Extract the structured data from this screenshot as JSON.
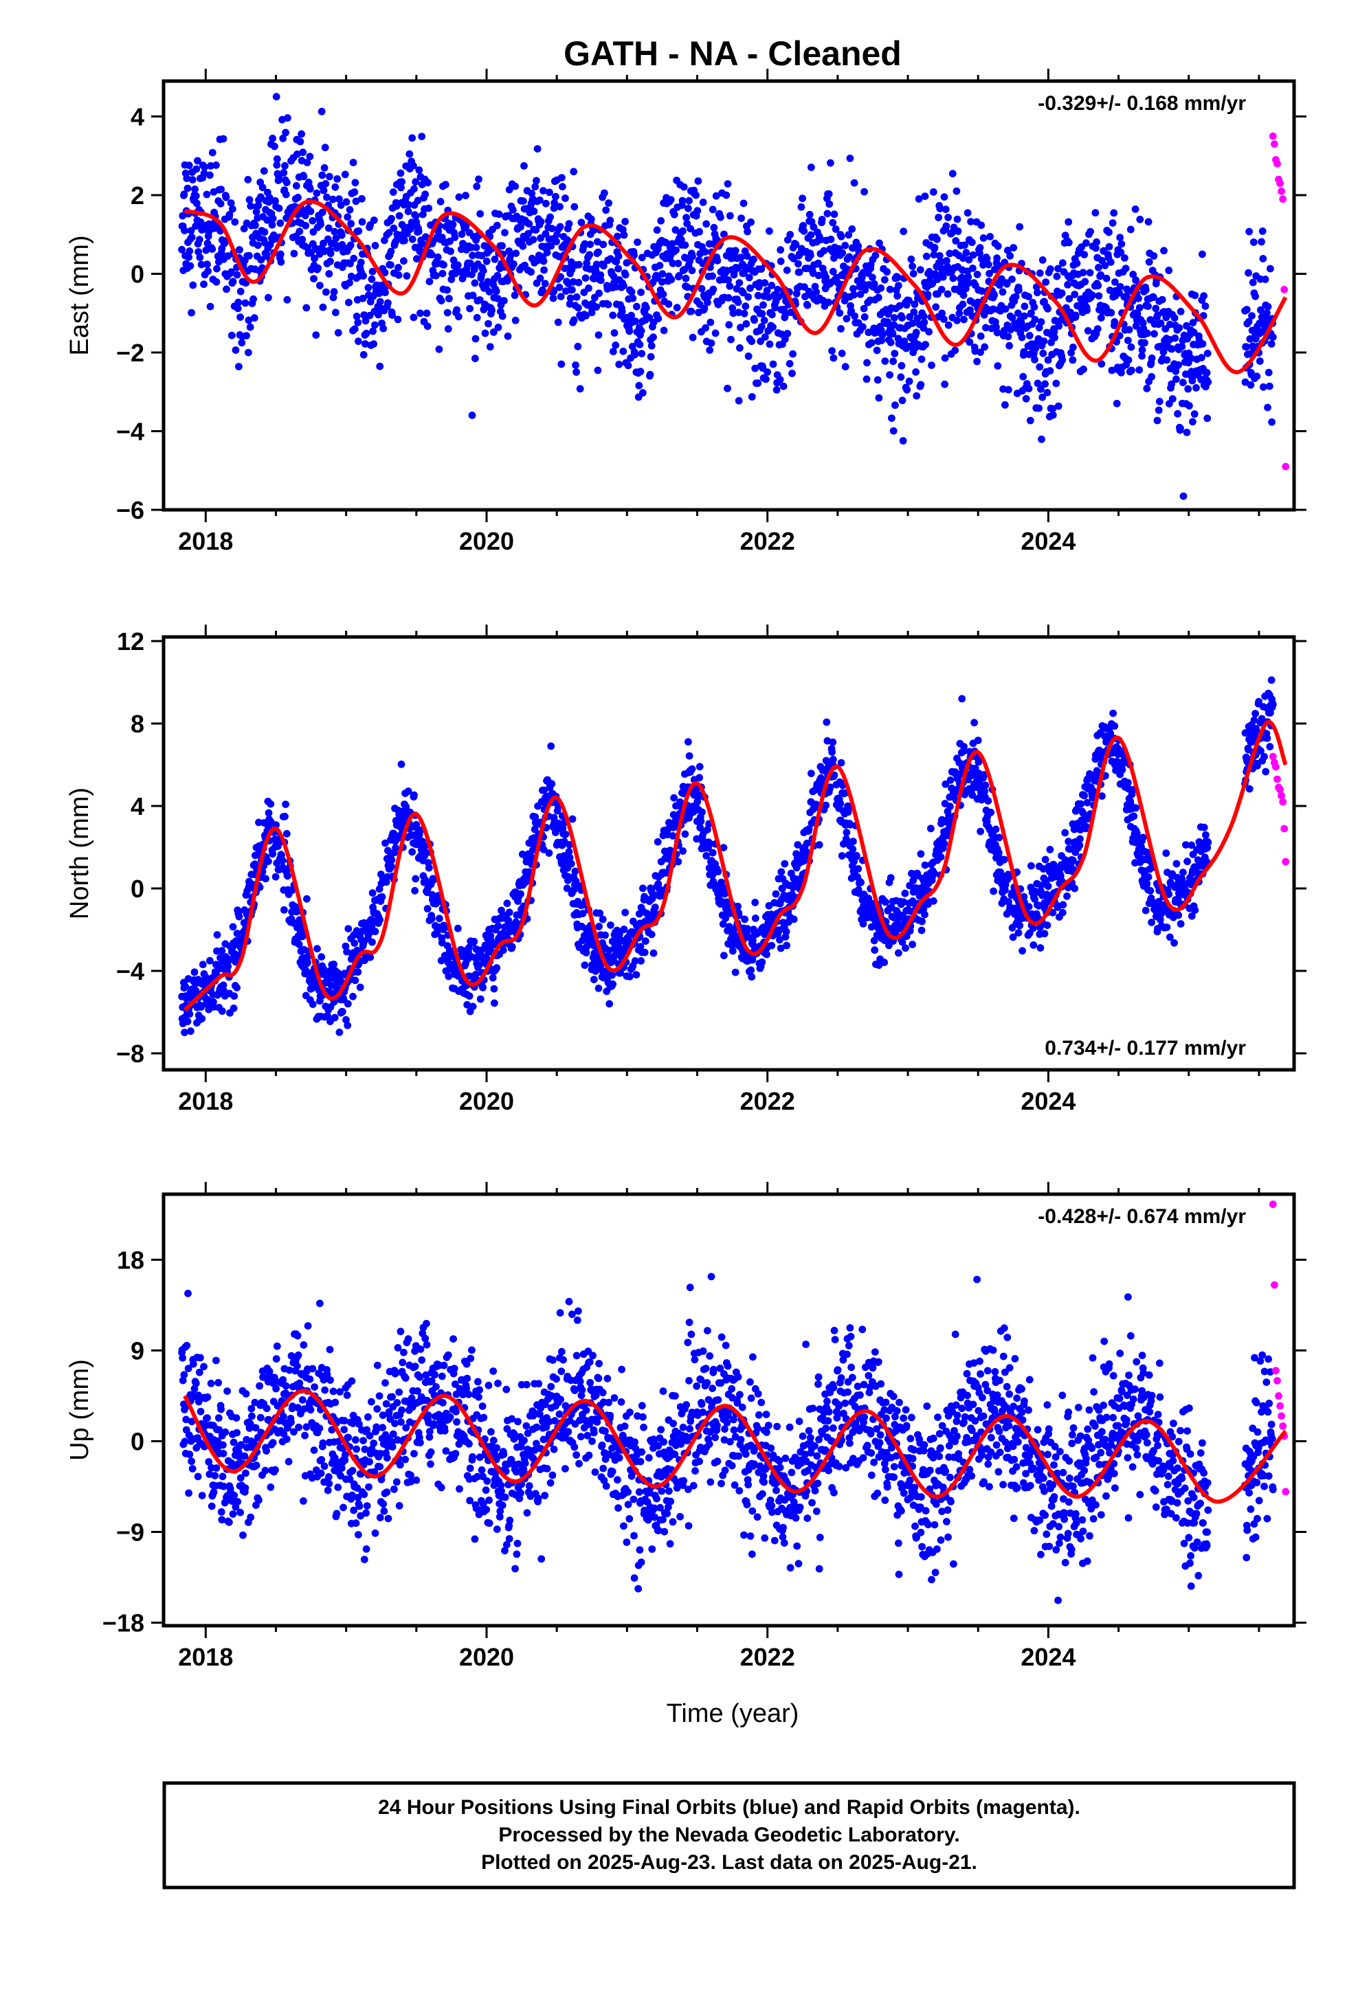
{
  "title": "GATH  - NA - Cleaned",
  "colors": {
    "final": "#0000ff",
    "rapid": "#ff00ff",
    "fit": "#ff0000",
    "axis": "#000000"
  },
  "xlabel": "Time (year)",
  "footer": {
    "line1": "24 Hour Positions Using Final Orbits (blue) and Rapid Orbits (magenta).",
    "line2": "Processed by the Nevada Geodetic Laboratory.",
    "line3": "Plotted on 2025-Aug-23. Last data on 2025-Aug-21."
  },
  "chart_data": [
    {
      "type": "scatter",
      "component": "east",
      "ylabel": "East (mm)",
      "rate_label": "-0.329+/- 0.168 mm/yr",
      "rate_position": "top-right",
      "xlim": [
        2017.7,
        2025.75
      ],
      "ylim": [
        -6.0,
        4.9
      ],
      "xticks": [
        2018,
        2020,
        2022,
        2024
      ],
      "yticks": [
        -6,
        -4,
        -2,
        0,
        2,
        4
      ],
      "series": [
        {
          "kind": "daily_final_positions",
          "sampled_x": [
            2017.85,
            2017.95,
            2018.05,
            2018.15,
            2018.25,
            2018.35,
            2018.45,
            2018.55,
            2018.65,
            2018.75,
            2018.85,
            2018.95,
            2019.05,
            2019.15,
            2019.25,
            2019.35,
            2019.45,
            2019.55,
            2019.65,
            2019.75,
            2019.85,
            2019.95,
            2020.05,
            2020.15,
            2020.25,
            2020.35,
            2020.45,
            2020.55,
            2020.65,
            2020.75,
            2020.85,
            2020.95,
            2021.05,
            2021.15,
            2021.25,
            2021.35,
            2021.45,
            2021.55,
            2021.65,
            2021.75,
            2021.85,
            2021.95,
            2022.05,
            2022.15,
            2022.25,
            2022.35,
            2022.45,
            2022.55,
            2022.65,
            2022.75,
            2022.85,
            2022.95,
            2023.05,
            2023.15,
            2023.25,
            2023.35,
            2023.45,
            2023.55,
            2023.65,
            2023.75,
            2023.85,
            2023.95,
            2024.05,
            2024.15,
            2024.25,
            2024.35,
            2024.45,
            2024.55,
            2024.65,
            2024.75,
            2024.85,
            2024.95,
            2025.05,
            2025.45,
            2025.55
          ],
          "sampled_y": [
            1.6,
            1.4,
            1.3,
            0.8,
            -0.2,
            0.5,
            1.5,
            1.8,
            1.7,
            1.3,
            1.0,
            1.0,
            0.3,
            -0.5,
            -0.4,
            0.8,
            1.5,
            1.2,
            0.8,
            0.7,
            0.6,
            -0.2,
            -0.8,
            0.2,
            1.1,
            1.2,
            0.8,
            0.4,
            0.3,
            0.2,
            0.1,
            -0.6,
            -1.1,
            -0.8,
            0.2,
            0.8,
            0.6,
            0.1,
            0.0,
            -0.1,
            -0.4,
            -1.0,
            -1.4,
            -0.7,
            0.3,
            0.5,
            0.2,
            -0.2,
            -0.3,
            -0.5,
            -1.2,
            -1.8,
            -1.2,
            -0.2,
            0.2,
            0.0,
            -0.4,
            -0.6,
            -0.7,
            -1.2,
            -1.9,
            -2.2,
            -1.6,
            -0.5,
            -0.1,
            -0.3,
            -0.7,
            -0.9,
            -1.0,
            -1.1,
            -1.9,
            -2.5,
            -2.0,
            -1.5,
            -1.2
          ],
          "scatter_sd": 0.95
        },
        {
          "kind": "rapid_positions",
          "x": [
            2025.6,
            2025.61,
            2025.62,
            2025.63,
            2025.64,
            2025.65,
            2025.66,
            2025.67,
            2025.68,
            2025.69
          ],
          "y": [
            3.5,
            3.3,
            2.9,
            2.8,
            2.4,
            2.3,
            2.1,
            1.9,
            -0.4,
            -4.9
          ]
        },
        {
          "kind": "fit",
          "x": [
            2017.85,
            2018.1,
            2018.35,
            2018.7,
            2019.05,
            2019.4,
            2019.7,
            2020.05,
            2020.35,
            2020.7,
            2021.05,
            2021.35,
            2021.7,
            2022.05,
            2022.35,
            2022.7,
            2023.05,
            2023.35,
            2023.7,
            2024.05,
            2024.35,
            2024.7,
            2025.05,
            2025.35,
            2025.69
          ],
          "y": [
            1.6,
            1.3,
            -0.2,
            1.8,
            1.0,
            -0.5,
            1.5,
            0.7,
            -0.8,
            1.2,
            0.3,
            -1.1,
            0.9,
            0.0,
            -1.5,
            0.6,
            -0.3,
            -1.8,
            0.2,
            -0.7,
            -2.2,
            -0.1,
            -1.0,
            -2.5,
            -0.6
          ]
        }
      ]
    },
    {
      "type": "scatter",
      "component": "north",
      "ylabel": "North (mm)",
      "rate_label": "0.734+/- 0.177 mm/yr",
      "rate_position": "bottom-right",
      "xlim": [
        2017.7,
        2025.75
      ],
      "ylim": [
        -8.8,
        12.2
      ],
      "xticks": [
        2018,
        2020,
        2022,
        2024
      ],
      "yticks": [
        -8,
        -4,
        0,
        4,
        8,
        12
      ],
      "series": [
        {
          "kind": "daily_final_positions",
          "sampled_x": [
            2017.85,
            2017.95,
            2018.05,
            2018.15,
            2018.25,
            2018.35,
            2018.45,
            2018.55,
            2018.65,
            2018.75,
            2018.85,
            2018.95,
            2019.05,
            2019.15,
            2019.25,
            2019.35,
            2019.45,
            2019.55,
            2019.65,
            2019.75,
            2019.85,
            2019.95,
            2020.05,
            2020.15,
            2020.25,
            2020.35,
            2020.45,
            2020.55,
            2020.65,
            2020.75,
            2020.85,
            2020.95,
            2021.05,
            2021.15,
            2021.25,
            2021.35,
            2021.45,
            2021.55,
            2021.65,
            2021.75,
            2021.85,
            2021.95,
            2022.05,
            2022.15,
            2022.25,
            2022.35,
            2022.45,
            2022.55,
            2022.65,
            2022.75,
            2022.85,
            2022.95,
            2023.05,
            2023.15,
            2023.25,
            2023.35,
            2023.45,
            2023.55,
            2023.65,
            2023.75,
            2023.85,
            2023.95,
            2024.05,
            2024.15,
            2024.25,
            2024.35,
            2024.45,
            2024.55,
            2024.65,
            2024.75,
            2024.85,
            2024.95,
            2025.05,
            2025.45,
            2025.55
          ],
          "sampled_y": [
            -5.9,
            -5.2,
            -4.5,
            -4.0,
            -2.5,
            0.5,
            2.8,
            1.5,
            -2.0,
            -4.2,
            -5.1,
            -4.6,
            -3.8,
            -2.5,
            0.0,
            2.5,
            3.6,
            1.5,
            -1.5,
            -3.5,
            -4.4,
            -4.0,
            -3.0,
            -2.2,
            -0.5,
            2.5,
            4.4,
            2.0,
            -1.0,
            -3.0,
            -3.7,
            -3.2,
            -2.5,
            -1.5,
            0.5,
            3.0,
            5.1,
            3.0,
            0.0,
            -2.2,
            -2.9,
            -2.4,
            -1.5,
            -0.5,
            1.5,
            4.0,
            5.9,
            3.5,
            0.5,
            -1.5,
            -2.0,
            -1.5,
            -0.8,
            0.2,
            2.5,
            5.0,
            6.6,
            4.0,
            1.0,
            -1.0,
            -1.4,
            -0.8,
            0.2,
            1.0,
            3.5,
            6.0,
            7.3,
            5.0,
            1.5,
            -0.5,
            -0.7,
            -0.2,
            0.8,
            7.0,
            8.0
          ],
          "scatter_sd": 0.85
        },
        {
          "kind": "rapid_positions",
          "x": [
            2025.6,
            2025.61,
            2025.62,
            2025.63,
            2025.64,
            2025.65,
            2025.66,
            2025.67,
            2025.68,
            2025.69
          ],
          "y": [
            6.4,
            6.1,
            5.9,
            5.3,
            4.9,
            4.8,
            4.5,
            4.2,
            2.9,
            1.3
          ]
        },
        {
          "kind": "fit",
          "x": [
            2017.85,
            2018.1,
            2018.25,
            2018.5,
            2018.85,
            2019.1,
            2019.25,
            2019.5,
            2019.85,
            2020.1,
            2020.25,
            2020.5,
            2020.85,
            2021.1,
            2021.25,
            2021.5,
            2021.85,
            2022.1,
            2022.25,
            2022.5,
            2022.85,
            2023.1,
            2023.25,
            2023.5,
            2023.85,
            2024.1,
            2024.25,
            2024.5,
            2024.85,
            2025.1,
            2025.3,
            2025.55,
            2025.69
          ],
          "y": [
            -5.9,
            -4.3,
            -3.5,
            2.9,
            -5.1,
            -3.2,
            -2.5,
            3.6,
            -4.4,
            -2.7,
            -1.8,
            4.4,
            -3.7,
            -2.0,
            -1.0,
            5.1,
            -2.9,
            -1.2,
            0.0,
            5.9,
            -2.1,
            -0.6,
            0.8,
            6.6,
            -1.4,
            0.1,
            1.5,
            7.3,
            -0.7,
            0.7,
            3.0,
            8.0,
            6.0
          ]
        }
      ]
    },
    {
      "type": "scatter",
      "component": "up",
      "ylabel": "Up (mm)",
      "rate_label": "-0.428+/- 0.674 mm/yr",
      "rate_position": "top-right",
      "xlim": [
        2017.7,
        2025.75
      ],
      "ylim": [
        -18.3,
        24.5
      ],
      "xticks": [
        2018,
        2020,
        2022,
        2024
      ],
      "yticks": [
        -18,
        -9,
        0,
        9,
        18
      ],
      "series": [
        {
          "kind": "daily_final_positions",
          "sampled_x": [
            2017.85,
            2017.95,
            2018.05,
            2018.15,
            2018.25,
            2018.35,
            2018.45,
            2018.55,
            2018.65,
            2018.75,
            2018.85,
            2018.95,
            2019.05,
            2019.15,
            2019.25,
            2019.35,
            2019.45,
            2019.55,
            2019.65,
            2019.75,
            2019.85,
            2019.95,
            2020.05,
            2020.15,
            2020.25,
            2020.35,
            2020.45,
            2020.55,
            2020.65,
            2020.75,
            2020.85,
            2020.95,
            2021.05,
            2021.15,
            2021.25,
            2021.35,
            2021.45,
            2021.55,
            2021.65,
            2021.75,
            2021.85,
            2021.95,
            2022.05,
            2022.15,
            2022.25,
            2022.35,
            2022.45,
            2022.55,
            2022.65,
            2022.75,
            2022.85,
            2022.95,
            2023.05,
            2023.15,
            2023.25,
            2023.35,
            2023.45,
            2023.55,
            2023.65,
            2023.75,
            2023.85,
            2023.95,
            2024.05,
            2024.15,
            2024.25,
            2024.35,
            2024.45,
            2024.55,
            2024.65,
            2024.75,
            2024.85,
            2024.95,
            2025.05,
            2025.45,
            2025.55
          ],
          "sampled_y": [
            4.5,
            3.0,
            0.5,
            -2.0,
            -3.0,
            -1.0,
            2.0,
            4.5,
            5.0,
            4.0,
            2.0,
            -0.5,
            -2.5,
            -3.5,
            -2.5,
            0.5,
            3.0,
            4.5,
            4.5,
            3.5,
            1.5,
            -1.0,
            -3.0,
            -4.0,
            -3.0,
            -0.5,
            2.0,
            4.0,
            4.0,
            3.0,
            1.0,
            -1.5,
            -3.5,
            -4.5,
            -4.0,
            -1.5,
            1.5,
            3.5,
            3.5,
            2.5,
            0.5,
            -2.0,
            -4.0,
            -5.0,
            -4.0,
            -1.0,
            2.0,
            3.5,
            3.0,
            2.0,
            0.0,
            -2.5,
            -4.5,
            -5.0,
            -3.5,
            -0.5,
            2.0,
            3.0,
            2.5,
            1.0,
            -1.0,
            -3.5,
            -5.5,
            -5.5,
            -3.5,
            -0.5,
            1.5,
            2.5,
            2.0,
            0.5,
            -1.5,
            -4.0,
            -6.0,
            -3.0,
            0.0
          ],
          "scatter_sd": 3.6
        },
        {
          "kind": "rapid_positions",
          "x": [
            2025.6,
            2025.61,
            2025.62,
            2025.63,
            2025.64,
            2025.65,
            2025.66,
            2025.67,
            2025.68,
            2025.69
          ],
          "y": [
            23.5,
            15.5,
            7.0,
            6.0,
            4.5,
            3.5,
            2.5,
            1.5,
            0.5,
            -5.0
          ]
        },
        {
          "kind": "fit",
          "x": [
            2017.85,
            2018.2,
            2018.7,
            2019.2,
            2019.7,
            2020.2,
            2020.7,
            2021.2,
            2021.7,
            2022.2,
            2022.7,
            2023.2,
            2023.7,
            2024.2,
            2024.7,
            2025.2,
            2025.69
          ],
          "y": [
            4.5,
            -3.0,
            5.0,
            -3.5,
            4.5,
            -4.0,
            4.0,
            -4.5,
            3.5,
            -5.0,
            3.0,
            -5.5,
            2.5,
            -5.5,
            2.0,
            -6.0,
            1.0
          ]
        }
      ]
    }
  ]
}
